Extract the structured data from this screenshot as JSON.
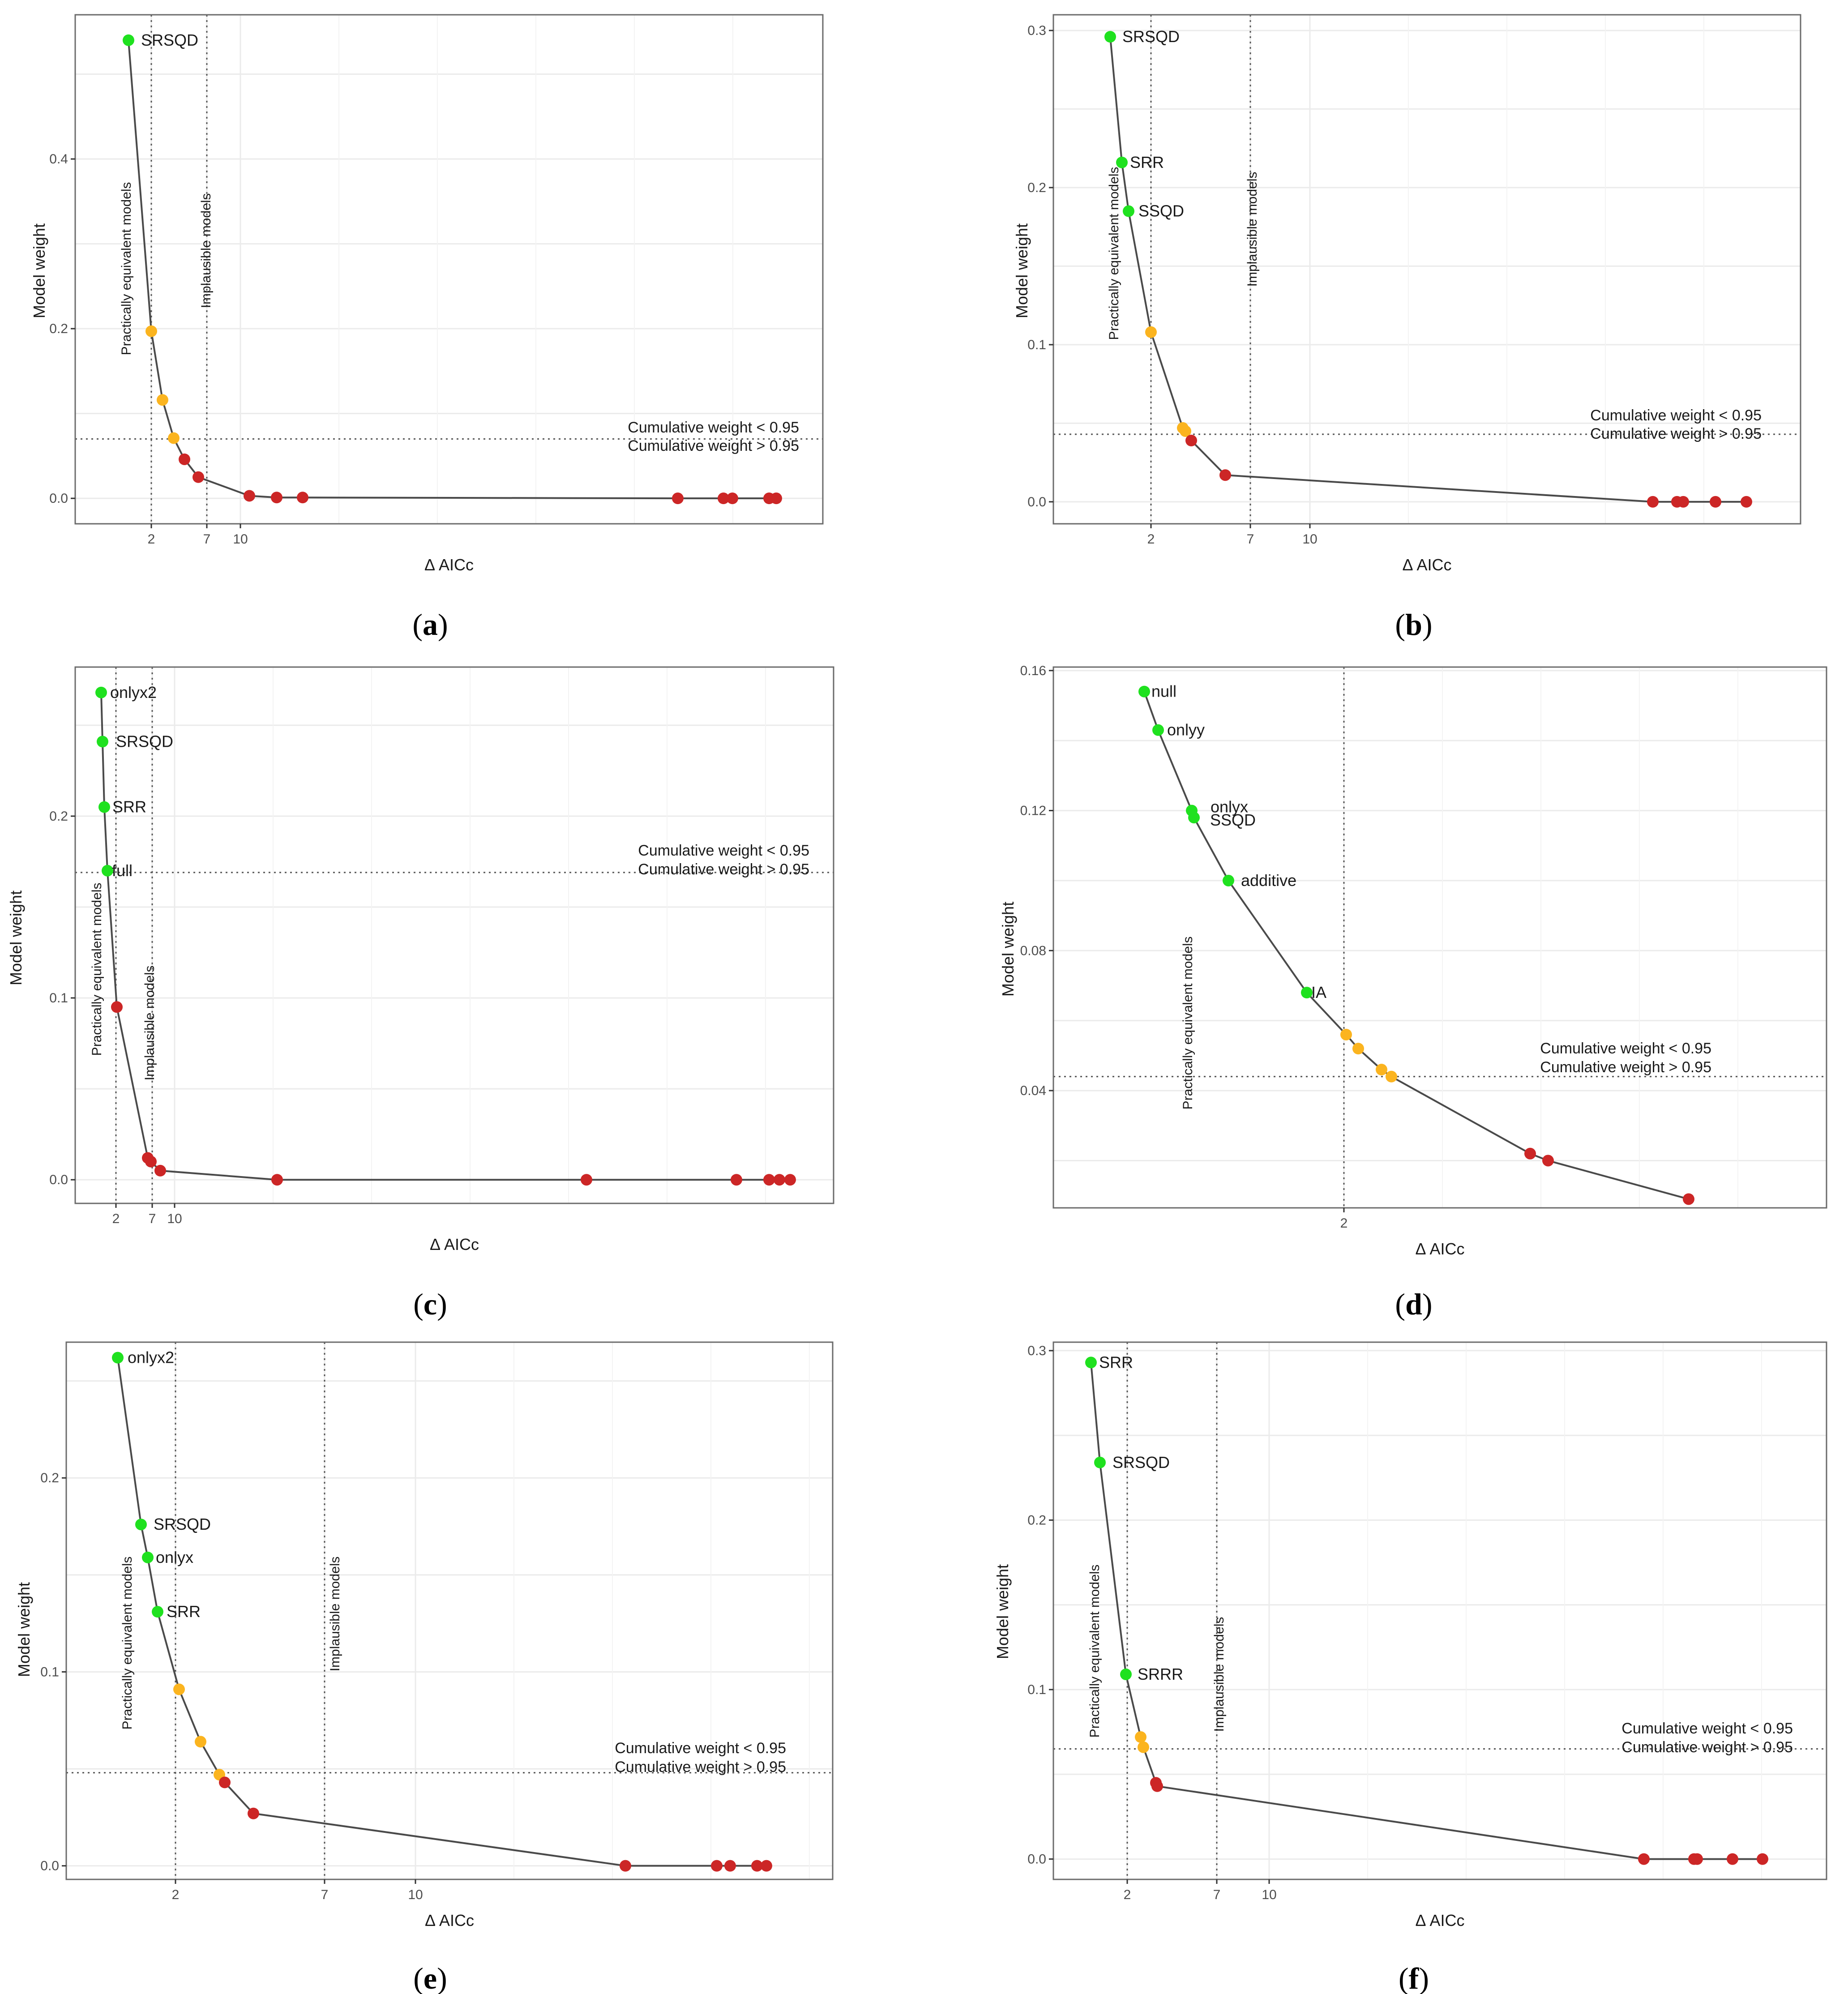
{
  "chart_data": [
    {
      "type": "scatter",
      "panel": "a",
      "xlabel": "Δ AICc",
      "ylabel": "Model weight",
      "x_ticks": [
        "2",
        "7",
        "10"
      ],
      "y_ticks": [
        "0.0",
        "0.2",
        "0.4"
      ],
      "ylim": [
        -0.03,
        0.57
      ],
      "cumulative_line_y": 0.07,
      "cumulative_labels": [
        "Cumulative weight < 0.95",
        "Cumulative weight > 0.95"
      ],
      "vertical_lines": [
        {
          "x": "2",
          "label": "Practically equivalent models"
        },
        {
          "x": "7",
          "label": "Implausible models"
        }
      ],
      "points": [
        {
          "w": 0.54,
          "color": "green",
          "label": "SRSQD"
        },
        {
          "w": 0.197,
          "color": "orange",
          "label": ""
        },
        {
          "w": 0.116,
          "color": "orange",
          "label": ""
        },
        {
          "w": 0.071,
          "color": "orange",
          "label": ""
        },
        {
          "w": 0.046,
          "color": "red",
          "label": ""
        },
        {
          "w": 0.025,
          "color": "red",
          "label": ""
        },
        {
          "w": 0.003,
          "color": "red",
          "label": ""
        },
        {
          "w": 0.001,
          "color": "red",
          "label": ""
        },
        {
          "w": 0.001,
          "color": "red",
          "label": ""
        },
        {
          "w": 0.0,
          "color": "red",
          "label": ""
        },
        {
          "w": 0.0,
          "color": "red",
          "label": ""
        },
        {
          "w": 0.0,
          "color": "red",
          "label": ""
        },
        {
          "w": 0.0,
          "color": "red",
          "label": ""
        },
        {
          "w": 0.0,
          "color": "red",
          "label": ""
        }
      ]
    },
    {
      "type": "scatter",
      "panel": "b",
      "xlabel": "Δ AICc",
      "ylabel": "Model weight",
      "x_ticks": [
        "2",
        "7",
        "10"
      ],
      "y_ticks": [
        "0.0",
        "0.1",
        "0.2",
        "0.3"
      ],
      "ylim": [
        -0.014,
        0.31
      ],
      "cumulative_line_y": 0.043,
      "cumulative_labels": [
        "Cumulative weight < 0.95",
        "Cumulative weight > 0.95"
      ],
      "vertical_lines": [
        {
          "x": "2",
          "label": "Practically equivalent models"
        },
        {
          "x": "7",
          "label": "Implausible models"
        }
      ],
      "points": [
        {
          "w": 0.296,
          "color": "green",
          "label": "SRSQD"
        },
        {
          "w": 0.216,
          "color": "green",
          "label": "SRR"
        },
        {
          "w": 0.185,
          "color": "green",
          "label": "SSQD"
        },
        {
          "w": 0.108,
          "color": "orange",
          "label": ""
        },
        {
          "w": 0.047,
          "color": "orange",
          "label": ""
        },
        {
          "w": 0.045,
          "color": "orange",
          "label": ""
        },
        {
          "w": 0.039,
          "color": "red",
          "label": ""
        },
        {
          "w": 0.017,
          "color": "red",
          "label": ""
        },
        {
          "w": 0.0,
          "color": "red",
          "label": ""
        },
        {
          "w": 0.0,
          "color": "red",
          "label": ""
        },
        {
          "w": 0.0,
          "color": "red",
          "label": ""
        },
        {
          "w": 0.0,
          "color": "red",
          "label": ""
        },
        {
          "w": 0.0,
          "color": "red",
          "label": ""
        }
      ]
    },
    {
      "type": "scatter",
      "panel": "c",
      "xlabel": "Δ AICc",
      "ylabel": "Model weight",
      "x_ticks": [
        "2",
        "7",
        "10"
      ],
      "y_ticks": [
        "0.0",
        "0.1",
        "0.2"
      ],
      "ylim": [
        -0.013,
        0.282
      ],
      "cumulative_line_y": 0.169,
      "cumulative_labels": [
        "Cumulative weight < 0.95",
        "Cumulative weight > 0.95"
      ],
      "vertical_lines": [
        {
          "x": "2",
          "label": "Practically equivalent models"
        },
        {
          "x": "7",
          "label": "Implausible models"
        }
      ],
      "points": [
        {
          "w": 0.268,
          "color": "green",
          "label": "onlyx2"
        },
        {
          "w": 0.241,
          "color": "green",
          "label": "SRSQD"
        },
        {
          "w": 0.205,
          "color": "green",
          "label": "SRR"
        },
        {
          "w": 0.17,
          "color": "green",
          "label": "full"
        },
        {
          "w": 0.095,
          "color": "red",
          "label": ""
        },
        {
          "w": 0.012,
          "color": "red",
          "label": ""
        },
        {
          "w": 0.01,
          "color": "red",
          "label": ""
        },
        {
          "w": 0.005,
          "color": "red",
          "label": ""
        },
        {
          "w": 0.0,
          "color": "red",
          "label": ""
        },
        {
          "w": 0.0,
          "color": "red",
          "label": ""
        },
        {
          "w": 0.0,
          "color": "red",
          "label": ""
        },
        {
          "w": 0.0,
          "color": "red",
          "label": ""
        },
        {
          "w": 0.0,
          "color": "red",
          "label": ""
        },
        {
          "w": 0.0,
          "color": "red",
          "label": ""
        }
      ]
    },
    {
      "type": "scatter",
      "panel": "d",
      "xlabel": "Δ AICc",
      "ylabel": "Model weight",
      "x_ticks": [
        "2"
      ],
      "y_ticks": [
        "0.04",
        "0.08",
        "0.12",
        "0.16"
      ],
      "ylim": [
        0.0065,
        0.161
      ],
      "cumulative_line_y": 0.044,
      "cumulative_labels": [
        "Cumulative weight < 0.95",
        "Cumulative weight > 0.95"
      ],
      "vertical_lines": [
        {
          "x": "2",
          "label": "Practically equivalent models"
        }
      ],
      "points": [
        {
          "w": 0.154,
          "color": "green",
          "label": "null"
        },
        {
          "w": 0.143,
          "color": "green",
          "label": "onlyy"
        },
        {
          "w": 0.12,
          "color": "green",
          "label": "onlyx"
        },
        {
          "w": 0.118,
          "color": "green",
          "label": "SSQD"
        },
        {
          "w": 0.1,
          "color": "green",
          "label": "additive"
        },
        {
          "w": 0.068,
          "color": "green",
          "label": "IA"
        },
        {
          "w": 0.056,
          "color": "orange",
          "label": ""
        },
        {
          "w": 0.052,
          "color": "orange",
          "label": ""
        },
        {
          "w": 0.046,
          "color": "orange",
          "label": ""
        },
        {
          "w": 0.044,
          "color": "orange",
          "label": ""
        },
        {
          "w": 0.022,
          "color": "red",
          "label": ""
        },
        {
          "w": 0.02,
          "color": "red",
          "label": ""
        },
        {
          "w": 0.009,
          "color": "red",
          "label": ""
        }
      ]
    },
    {
      "type": "scatter",
      "panel": "e",
      "xlabel": "Δ AICc",
      "ylabel": "Model weight",
      "x_ticks": [
        "2",
        "7",
        "10"
      ],
      "y_ticks": [
        "0.0",
        "0.1",
        "0.2"
      ],
      "ylim": [
        -0.007,
        0.27
      ],
      "cumulative_line_y": 0.048,
      "cumulative_labels": [
        "Cumulative weight < 0.95",
        "Cumulative weight > 0.95"
      ],
      "vertical_lines": [
        {
          "x": "2",
          "label": "Practically equivalent models"
        },
        {
          "x": "7",
          "label": "Implausible models"
        }
      ],
      "points": [
        {
          "w": 0.262,
          "color": "green",
          "label": "onlyx2"
        },
        {
          "w": 0.176,
          "color": "green",
          "label": "SRSQD"
        },
        {
          "w": 0.159,
          "color": "green",
          "label": "onlyx"
        },
        {
          "w": 0.131,
          "color": "green",
          "label": "SRR"
        },
        {
          "w": 0.091,
          "color": "orange",
          "label": ""
        },
        {
          "w": 0.064,
          "color": "orange",
          "label": ""
        },
        {
          "w": 0.047,
          "color": "orange",
          "label": ""
        },
        {
          "w": 0.043,
          "color": "red",
          "label": ""
        },
        {
          "w": 0.027,
          "color": "red",
          "label": ""
        },
        {
          "w": 0.0,
          "color": "red",
          "label": ""
        },
        {
          "w": 0.0,
          "color": "red",
          "label": ""
        },
        {
          "w": 0.0,
          "color": "red",
          "label": ""
        },
        {
          "w": 0.0,
          "color": "red",
          "label": ""
        },
        {
          "w": 0.0,
          "color": "red",
          "label": ""
        }
      ]
    },
    {
      "type": "scatter",
      "panel": "f",
      "xlabel": "Δ AICc",
      "ylabel": "Model weight",
      "x_ticks": [
        "2",
        "7",
        "10"
      ],
      "y_ticks": [
        "0.0",
        "0.1",
        "0.2",
        "0.3"
      ],
      "ylim": [
        -0.012,
        0.305
      ],
      "cumulative_line_y": 0.065,
      "cumulative_labels": [
        "Cumulative weight < 0.95",
        "Cumulative weight > 0.95"
      ],
      "vertical_lines": [
        {
          "x": "2",
          "label": "Practically equivalent models"
        },
        {
          "x": "7",
          "label": "Implausible models"
        }
      ],
      "points": [
        {
          "w": 0.293,
          "color": "green",
          "label": "SRR"
        },
        {
          "w": 0.234,
          "color": "green",
          "label": "SRSQD"
        },
        {
          "w": 0.109,
          "color": "green",
          "label": "SRRR"
        },
        {
          "w": 0.072,
          "color": "orange",
          "label": ""
        },
        {
          "w": 0.066,
          "color": "orange",
          "label": ""
        },
        {
          "w": 0.045,
          "color": "red",
          "label": ""
        },
        {
          "w": 0.043,
          "color": "red",
          "label": ""
        },
        {
          "w": 0.0,
          "color": "red",
          "label": ""
        },
        {
          "w": 0.0,
          "color": "red",
          "label": ""
        },
        {
          "w": 0.0,
          "color": "red",
          "label": ""
        },
        {
          "w": 0.0,
          "color": "red",
          "label": ""
        },
        {
          "w": 0.0,
          "color": "red",
          "label": ""
        }
      ]
    }
  ],
  "captions": [
    "a",
    "b",
    "c",
    "d",
    "e",
    "f"
  ],
  "colors": {
    "green": "#1fe11f",
    "orange": "#fbb41f",
    "red": "#cc2626",
    "line": "#4a4a4a",
    "grid": "#ebebeb",
    "frame": "#6b6b6b"
  }
}
